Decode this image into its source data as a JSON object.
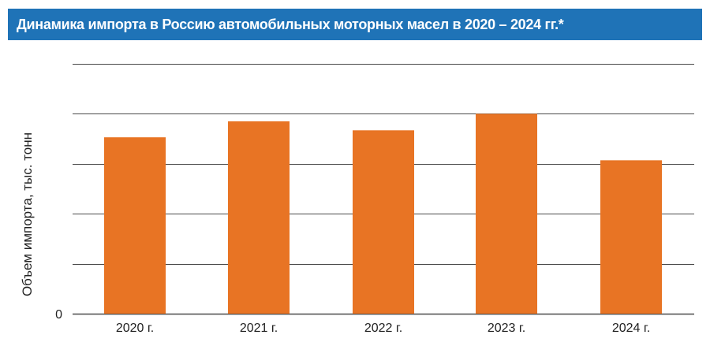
{
  "title": "Динамика импорта в Россию автомобильных моторных масел в 2020 – 2024 гг.*",
  "colors": {
    "title_bg": "#1f73b7",
    "bar": "#e87424",
    "grid": "#4a4a4a"
  },
  "chart_data": {
    "type": "bar",
    "title": "Динамика импорта в Россию автомобильных моторных масел в 2020 – 2024 гг.*",
    "ylabel": "Объем импорта, тыс. тонн",
    "xlabel": "",
    "categories": [
      "2020 г.",
      "2021 г.",
      "2022 г.",
      "2023 г.",
      "2024 г."
    ],
    "values": [
      3.53,
      3.85,
      3.67,
      4.0,
      3.07
    ],
    "ylim": [
      0,
      5
    ],
    "y_tick_labels": [
      {
        "value": 0,
        "label": "0"
      }
    ],
    "grid": true
  }
}
